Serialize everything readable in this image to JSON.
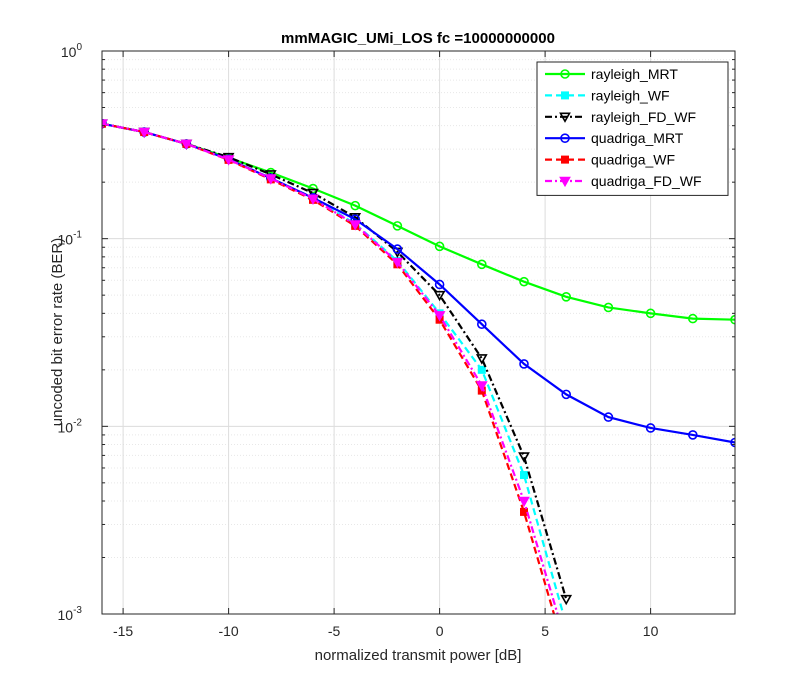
{
  "chart_data": {
    "type": "line",
    "title": "mmMAGIC_UMi_LOS fc =10000000000",
    "xlabel": "normalized transmit power [dB]",
    "ylabel": "uncoded bit error rate (BER)",
    "xlim": [
      -16,
      14
    ],
    "ylim": [
      0.001,
      1
    ],
    "yscale": "log",
    "grid": true,
    "minor_grid": true,
    "legend_position": "top-right",
    "x_ticks": [
      -15,
      -10,
      -5,
      0,
      5,
      10
    ],
    "x_tick_labels": [
      "-15",
      "-10",
      "-5",
      "0",
      "5",
      "10"
    ],
    "y_ticks": [
      {
        "value": 0.001,
        "base": "10",
        "exp": "-3"
      },
      {
        "value": 0.01,
        "base": "10",
        "exp": "-2"
      },
      {
        "value": 0.1,
        "base": "10",
        "exp": "-1"
      },
      {
        "value": 1,
        "base": "10",
        "exp": "0"
      }
    ],
    "series": [
      {
        "name": "rayleigh_MRT",
        "color": "#00ff00",
        "dash": "solid",
        "marker": "circle",
        "x": [
          -16,
          -14,
          -12,
          -10,
          -8,
          -6,
          -4,
          -2,
          0,
          2,
          4,
          6,
          8,
          10,
          12,
          14
        ],
        "y": [
          0.41,
          0.37,
          0.32,
          0.27,
          0.225,
          0.185,
          0.15,
          0.117,
          0.091,
          0.073,
          0.059,
          0.049,
          0.043,
          0.04,
          0.0375,
          0.037
        ]
      },
      {
        "name": "rayleigh_WF",
        "color": "#00ffff",
        "dash": "dashed",
        "marker": "square",
        "x": [
          -16,
          -14,
          -12,
          -10,
          -8,
          -6,
          -4,
          -2,
          0,
          2,
          4,
          6
        ],
        "y": [
          0.41,
          0.37,
          0.32,
          0.265,
          0.21,
          0.165,
          0.12,
          0.076,
          0.04,
          0.02,
          0.0055,
          0.00088
        ]
      },
      {
        "name": "rayleigh_FD_WF",
        "color": "#000000",
        "dash": "dashdot",
        "marker": "triangle-down",
        "x": [
          -16,
          -14,
          -12,
          -10,
          -8,
          -6,
          -4,
          -2,
          0,
          2,
          4,
          6
        ],
        "y": [
          0.41,
          0.37,
          0.32,
          0.272,
          0.22,
          0.175,
          0.13,
          0.085,
          0.05,
          0.023,
          0.0069,
          0.0012
        ]
      },
      {
        "name": "quadriga_MRT",
        "color": "#0000ff",
        "dash": "solid",
        "marker": "circle",
        "x": [
          -16,
          -14,
          -12,
          -10,
          -8,
          -6,
          -4,
          -2,
          0,
          2,
          4,
          6,
          8,
          10,
          12,
          14
        ],
        "y": [
          0.41,
          0.37,
          0.32,
          0.265,
          0.21,
          0.165,
          0.127,
          0.088,
          0.057,
          0.035,
          0.0215,
          0.0148,
          0.0112,
          0.0098,
          0.009,
          0.0082
        ]
      },
      {
        "name": "quadriga_WF",
        "color": "#ff0000",
        "dash": "dashed",
        "marker": "square",
        "x": [
          -16,
          -14,
          -12,
          -10,
          -8,
          -6,
          -4,
          -2,
          0,
          2,
          4,
          6
        ],
        "y": [
          0.41,
          0.37,
          0.32,
          0.263,
          0.207,
          0.161,
          0.117,
          0.073,
          0.037,
          0.0155,
          0.0035,
          0.0006
        ]
      },
      {
        "name": "quadriga_FD_WF",
        "color": "#ff00ff",
        "dash": "dashdot",
        "marker": "triangle-down",
        "x": [
          -16,
          -14,
          -12,
          -10,
          -8,
          -6,
          -4,
          -2,
          0,
          2,
          4,
          6
        ],
        "y": [
          0.41,
          0.37,
          0.32,
          0.264,
          0.209,
          0.163,
          0.119,
          0.075,
          0.039,
          0.0165,
          0.004,
          0.0007
        ]
      }
    ]
  }
}
